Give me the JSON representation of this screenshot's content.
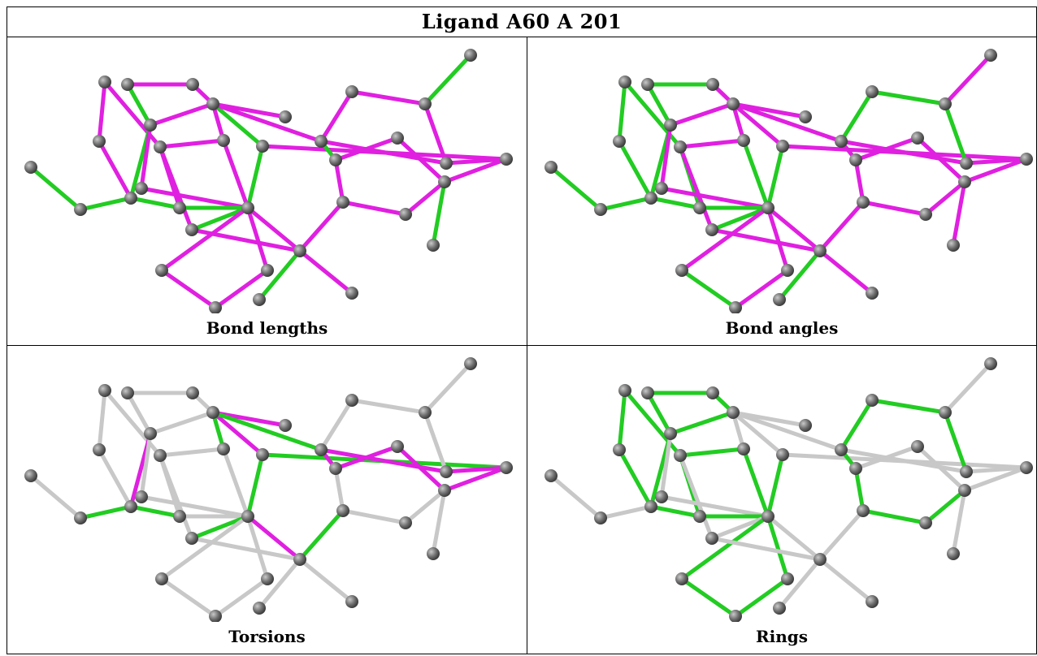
{
  "title": "Ligand A60 A 201",
  "colors": {
    "outlier": "#e020e0",
    "ok": "#22cc22",
    "neutral": "#c8c8c8",
    "atom": "#6e6e6e"
  },
  "panels": [
    {
      "id": "bond-lengths",
      "caption": "Bond lengths"
    },
    {
      "id": "bond-angles",
      "caption": "Bond angles"
    },
    {
      "id": "torsions",
      "caption": "Torsions"
    },
    {
      "id": "rings",
      "caption": "Rings"
    }
  ]
}
